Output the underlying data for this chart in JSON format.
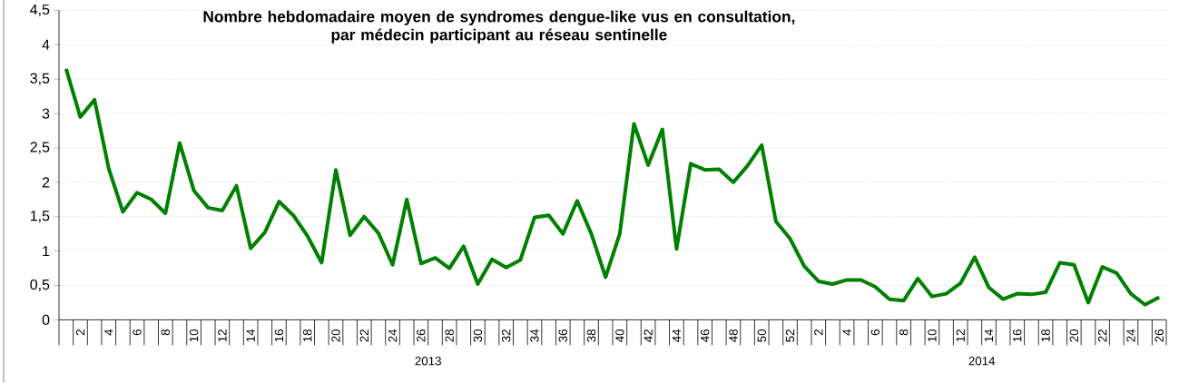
{
  "chart_data": {
    "type": "line",
    "title": "Nombre hebdomadaire moyen de syndromes dengue-like vus en consultation,\npar médecin participant au réseau sentinelle",
    "categories": [
      null,
      "2",
      null,
      "4",
      null,
      "6",
      null,
      "8",
      null,
      "10",
      null,
      "12",
      null,
      "14",
      null,
      "16",
      null,
      "18",
      null,
      "20",
      null,
      "22",
      null,
      "24",
      null,
      "26",
      null,
      "28",
      null,
      "30",
      null,
      "32",
      null,
      "34",
      null,
      "36",
      null,
      "38",
      null,
      "40",
      null,
      "42",
      null,
      "44",
      null,
      "46",
      null,
      "48",
      null,
      "50",
      null,
      "52",
      null,
      "2",
      null,
      "4",
      null,
      "6",
      null,
      "8",
      null,
      "10",
      null,
      "12",
      null,
      "14",
      null,
      "16",
      null,
      "18",
      null,
      "20",
      null,
      "22",
      null,
      "24",
      null,
      "26"
    ],
    "series": [
      {
        "color": "#008000",
        "values": [
          3.65,
          2.95,
          3.2,
          2.2,
          1.57,
          1.85,
          1.75,
          1.55,
          2.57,
          1.88,
          1.63,
          1.59,
          1.95,
          1.04,
          1.27,
          1.72,
          1.52,
          1.22,
          0.83,
          2.18,
          1.23,
          1.5,
          1.26,
          0.8,
          1.75,
          0.82,
          0.9,
          0.75,
          1.07,
          0.52,
          0.88,
          0.76,
          0.87,
          1.49,
          1.52,
          1.25,
          1.73,
          1.25,
          0.62,
          1.25,
          2.85,
          2.25,
          2.77,
          1.03,
          2.27,
          2.18,
          2.19,
          2.0,
          2.24,
          2.54,
          1.43,
          1.18,
          0.78,
          0.56,
          0.52,
          0.58,
          0.58,
          0.48,
          0.3,
          0.28,
          0.6,
          0.34,
          0.38,
          0.53,
          0.91,
          0.47,
          0.3,
          0.38,
          0.37,
          0.4,
          0.83,
          0.8,
          0.25,
          0.77,
          0.68,
          0.38,
          0.22,
          0.33
        ]
      }
    ],
    "ylim": [
      0,
      4.5
    ],
    "yticks": [
      0,
      {
        "value": 0.5,
        "label": "0,5"
      },
      1,
      {
        "value": 1.5,
        "label": "1,5"
      },
      2,
      {
        "value": 2.5,
        "label": "2,5"
      },
      3,
      {
        "value": 3.5,
        "label": "3,5"
      },
      4,
      {
        "value": 4.5,
        "label": "4,5"
      }
    ],
    "grid": "y",
    "marker": "none",
    "line_style": "solid",
    "annotations": [
      "2013",
      "2014"
    ]
  }
}
